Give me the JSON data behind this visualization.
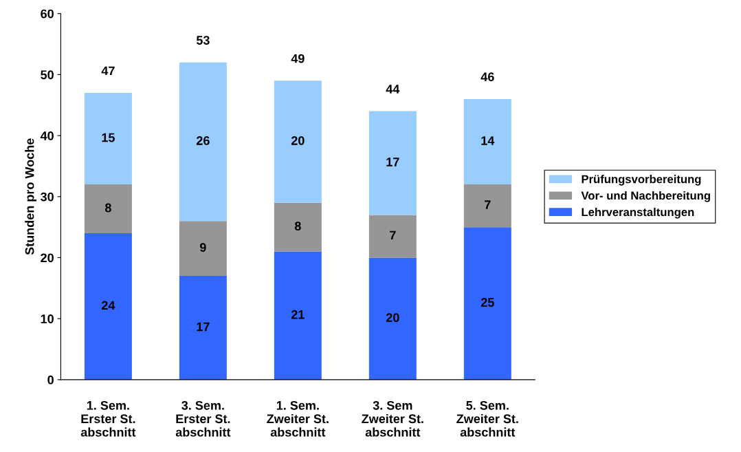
{
  "chart_data": {
    "type": "bar",
    "stacked": true,
    "ylabel": "Stunden pro Woche",
    "categories": [
      "1. Sem.\nErster St.\nabschnitt",
      "3. Sem.\nErster St.\nabschnitt",
      "1. Sem.\nZweiter St.\nabschnitt",
      "3. Sem\nZweiter St.\nabschnitt",
      "5. Sem.\nZweiter St.\nabschnitt"
    ],
    "series": [
      {
        "name": "Lehrveranstaltungen",
        "color": "#3366ff",
        "values": [
          24,
          17,
          21,
          20,
          25
        ]
      },
      {
        "name": "Vor- und Nachbereitung",
        "color": "#969696",
        "values": [
          8,
          9,
          8,
          7,
          7
        ]
      },
      {
        "name": "Prüfungsvorbereitung",
        "color": "#99ccff",
        "values": [
          15,
          26,
          20,
          17,
          14
        ]
      }
    ],
    "totals": [
      "47",
      "53",
      "49",
      "44",
      "46"
    ],
    "data_labels": true,
    "ylim": [
      0,
      60
    ],
    "yticks": [
      0,
      10,
      20,
      30,
      40,
      50,
      60
    ],
    "grid": false,
    "legend": "right"
  }
}
